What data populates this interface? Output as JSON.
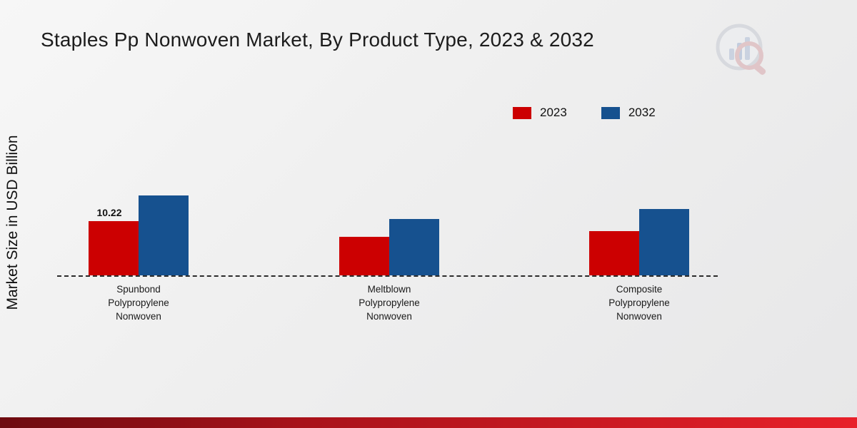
{
  "title": "Staples Pp Nonwoven Market, By Product Type, 2023 & 2032",
  "colors": {
    "series_2023": "#cc0001",
    "series_2032": "#16518f",
    "accent_band_start": "#6d0b10",
    "accent_band_end": "#e8212a"
  },
  "chart_data": {
    "type": "bar",
    "title": "Staples Pp Nonwoven Market, By Product Type, 2023 & 2032",
    "xlabel": "",
    "ylabel": "Market Size in USD Billion",
    "ylim": [
      0,
      20
    ],
    "grid": false,
    "legend_position": "top-center-right",
    "categories": [
      [
        "Spunbond",
        "Polypropylene",
        "Nonwoven"
      ],
      [
        "Meltblown",
        "Polypropylene",
        "Nonwoven"
      ],
      [
        "Composite",
        "Polypropylene",
        "Nonwoven"
      ]
    ],
    "series": [
      {
        "name": "2023",
        "color": "#cc0001",
        "values": [
          10.22,
          7.25,
          8.4
        ]
      },
      {
        "name": "2032",
        "color": "#16518f",
        "values": [
          15.05,
          10.65,
          12.5
        ]
      }
    ],
    "annotations": [
      {
        "series_index": 0,
        "category_index": 0,
        "text": "10.22"
      }
    ]
  }
}
